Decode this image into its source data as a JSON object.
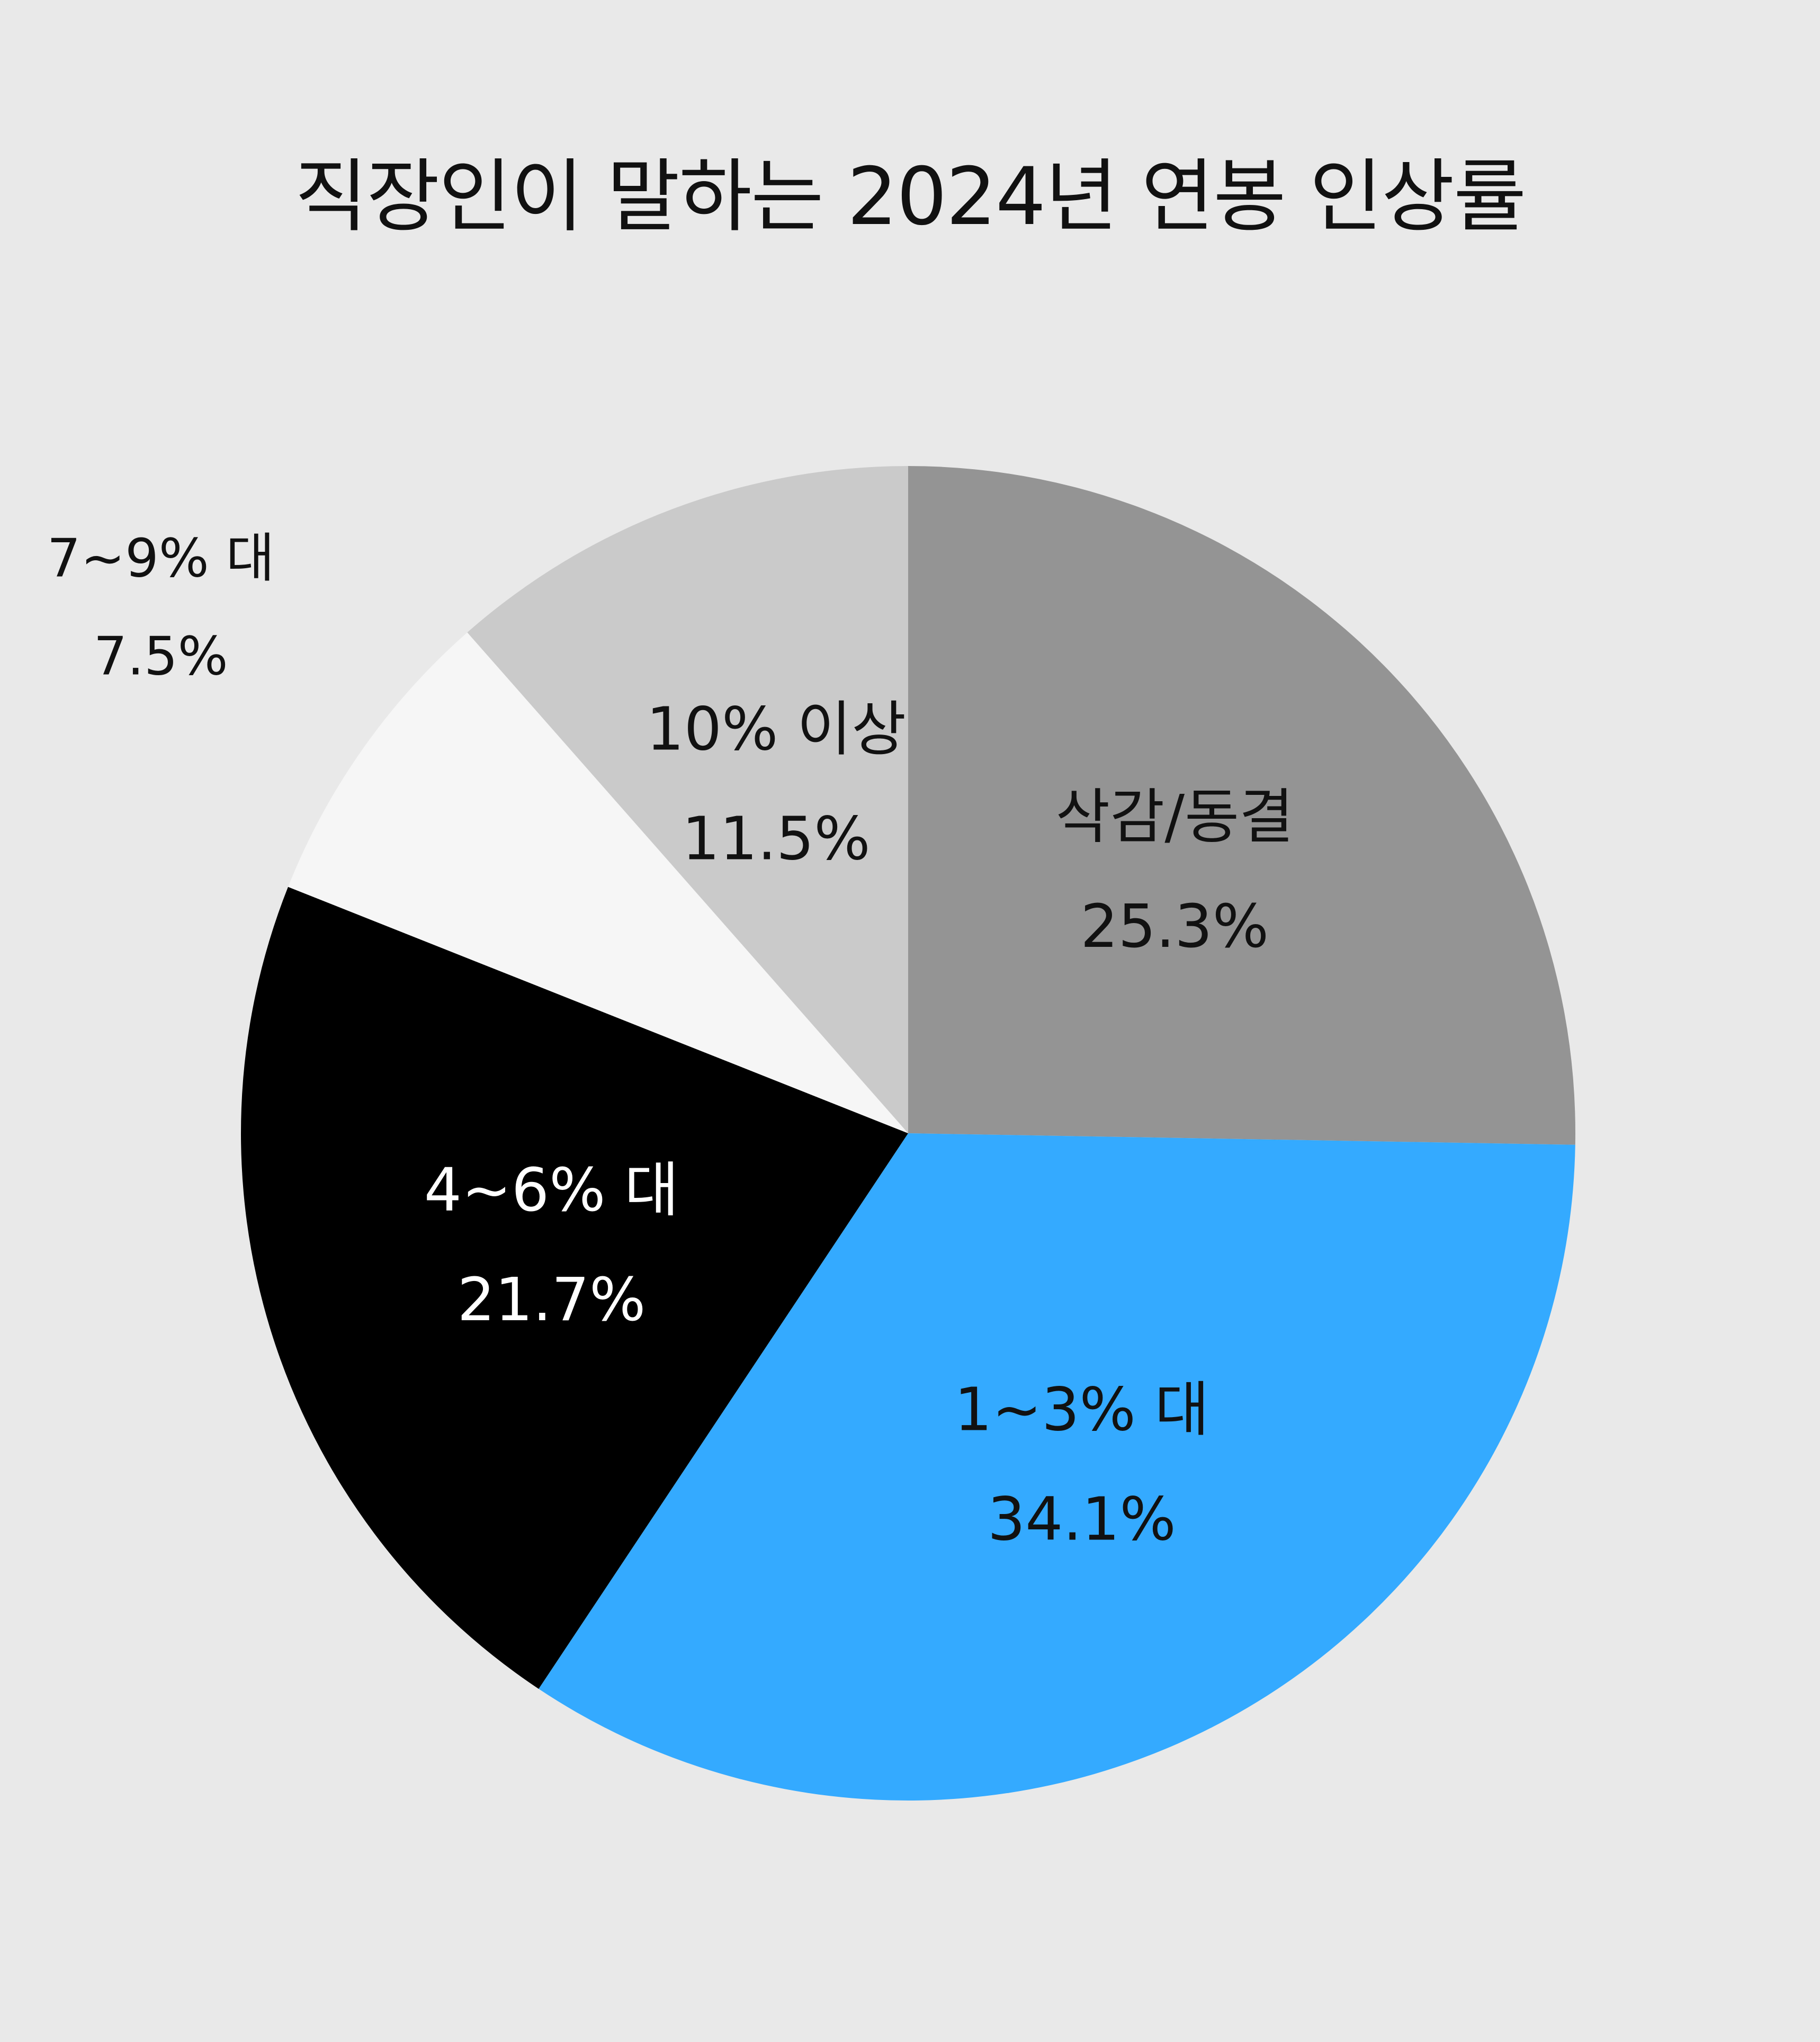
{
  "chart_data": {
    "type": "pie",
    "title": "직장인이 말하는 2024년 연봉 인상률",
    "start_angle_deg": 0,
    "direction": "clockwise",
    "slices": [
      {
        "label": "삭감/동결",
        "value": 25.3,
        "value_text": "25.3%",
        "color": "#949494",
        "label_color": "#111111",
        "label_position": "inside"
      },
      {
        "label": "1~3% 대",
        "value": 34.1,
        "value_text": "34.1%",
        "color": "#34aaff",
        "label_color": "#111111",
        "label_position": "inside"
      },
      {
        "label": "4~6% 대",
        "value": 21.7,
        "value_text": "21.7%",
        "color": "#000000",
        "label_color": "#ffffff",
        "label_position": "inside"
      },
      {
        "label": "7~9% 대",
        "value": 7.5,
        "value_text": "7.5%",
        "color": "#f6f6f6",
        "label_color": "#111111",
        "label_position": "outside"
      },
      {
        "label": "10% 이상",
        "value": 11.5,
        "value_text": "11.5%",
        "color": "#cacaca",
        "label_color": "#111111",
        "label_position": "inside"
      }
    ]
  }
}
